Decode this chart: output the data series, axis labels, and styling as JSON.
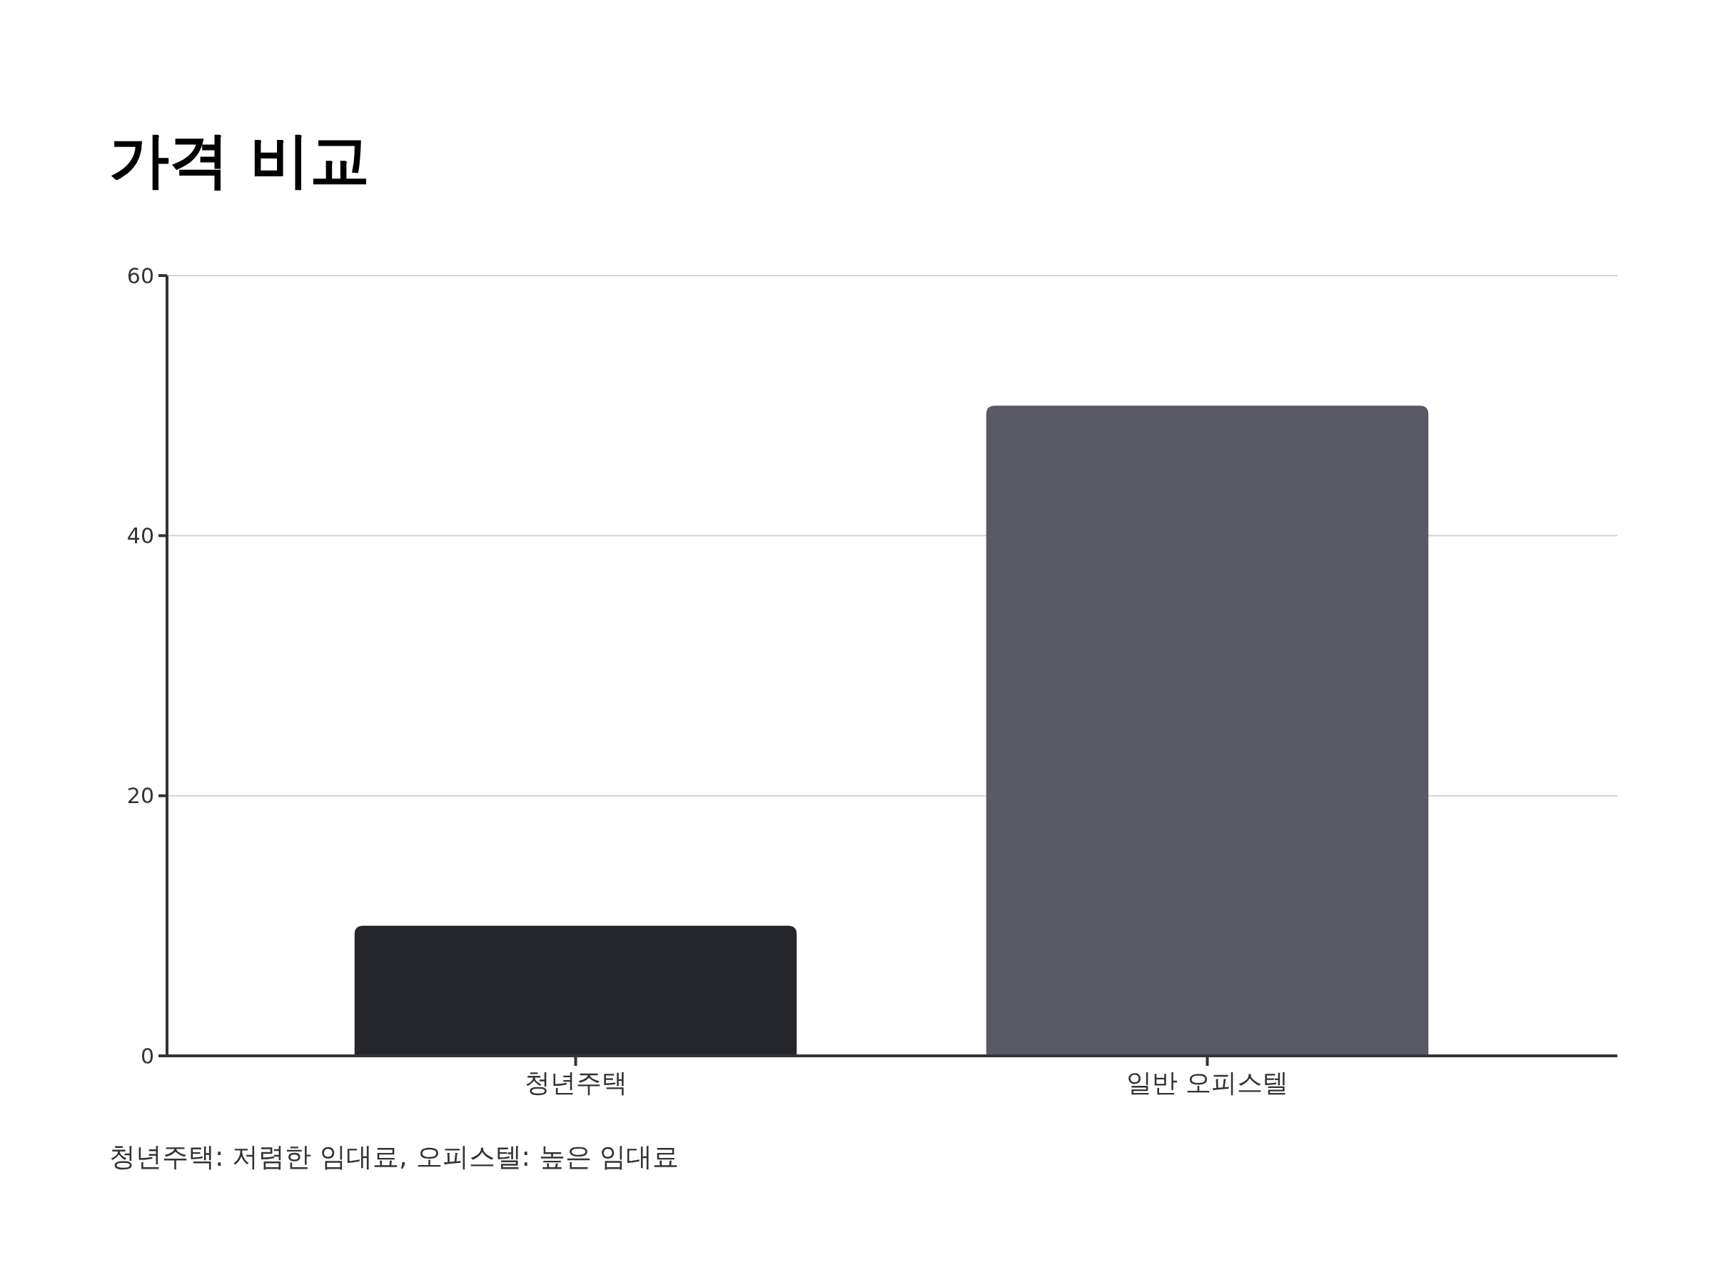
{
  "chart_data": {
    "type": "bar",
    "title": "가격 비교",
    "categories": [
      "청년주택",
      "일반 오피스텔"
    ],
    "values": [
      10,
      50
    ],
    "colors": [
      "#25262b",
      "#5a5a66"
    ],
    "ylim": [
      0,
      60
    ],
    "yticks": [
      0,
      20,
      40,
      60
    ],
    "grid": "y",
    "annotations": [
      "청년주택: 저렴한 임대료, 오피스텔: 높은 임대료"
    ]
  }
}
